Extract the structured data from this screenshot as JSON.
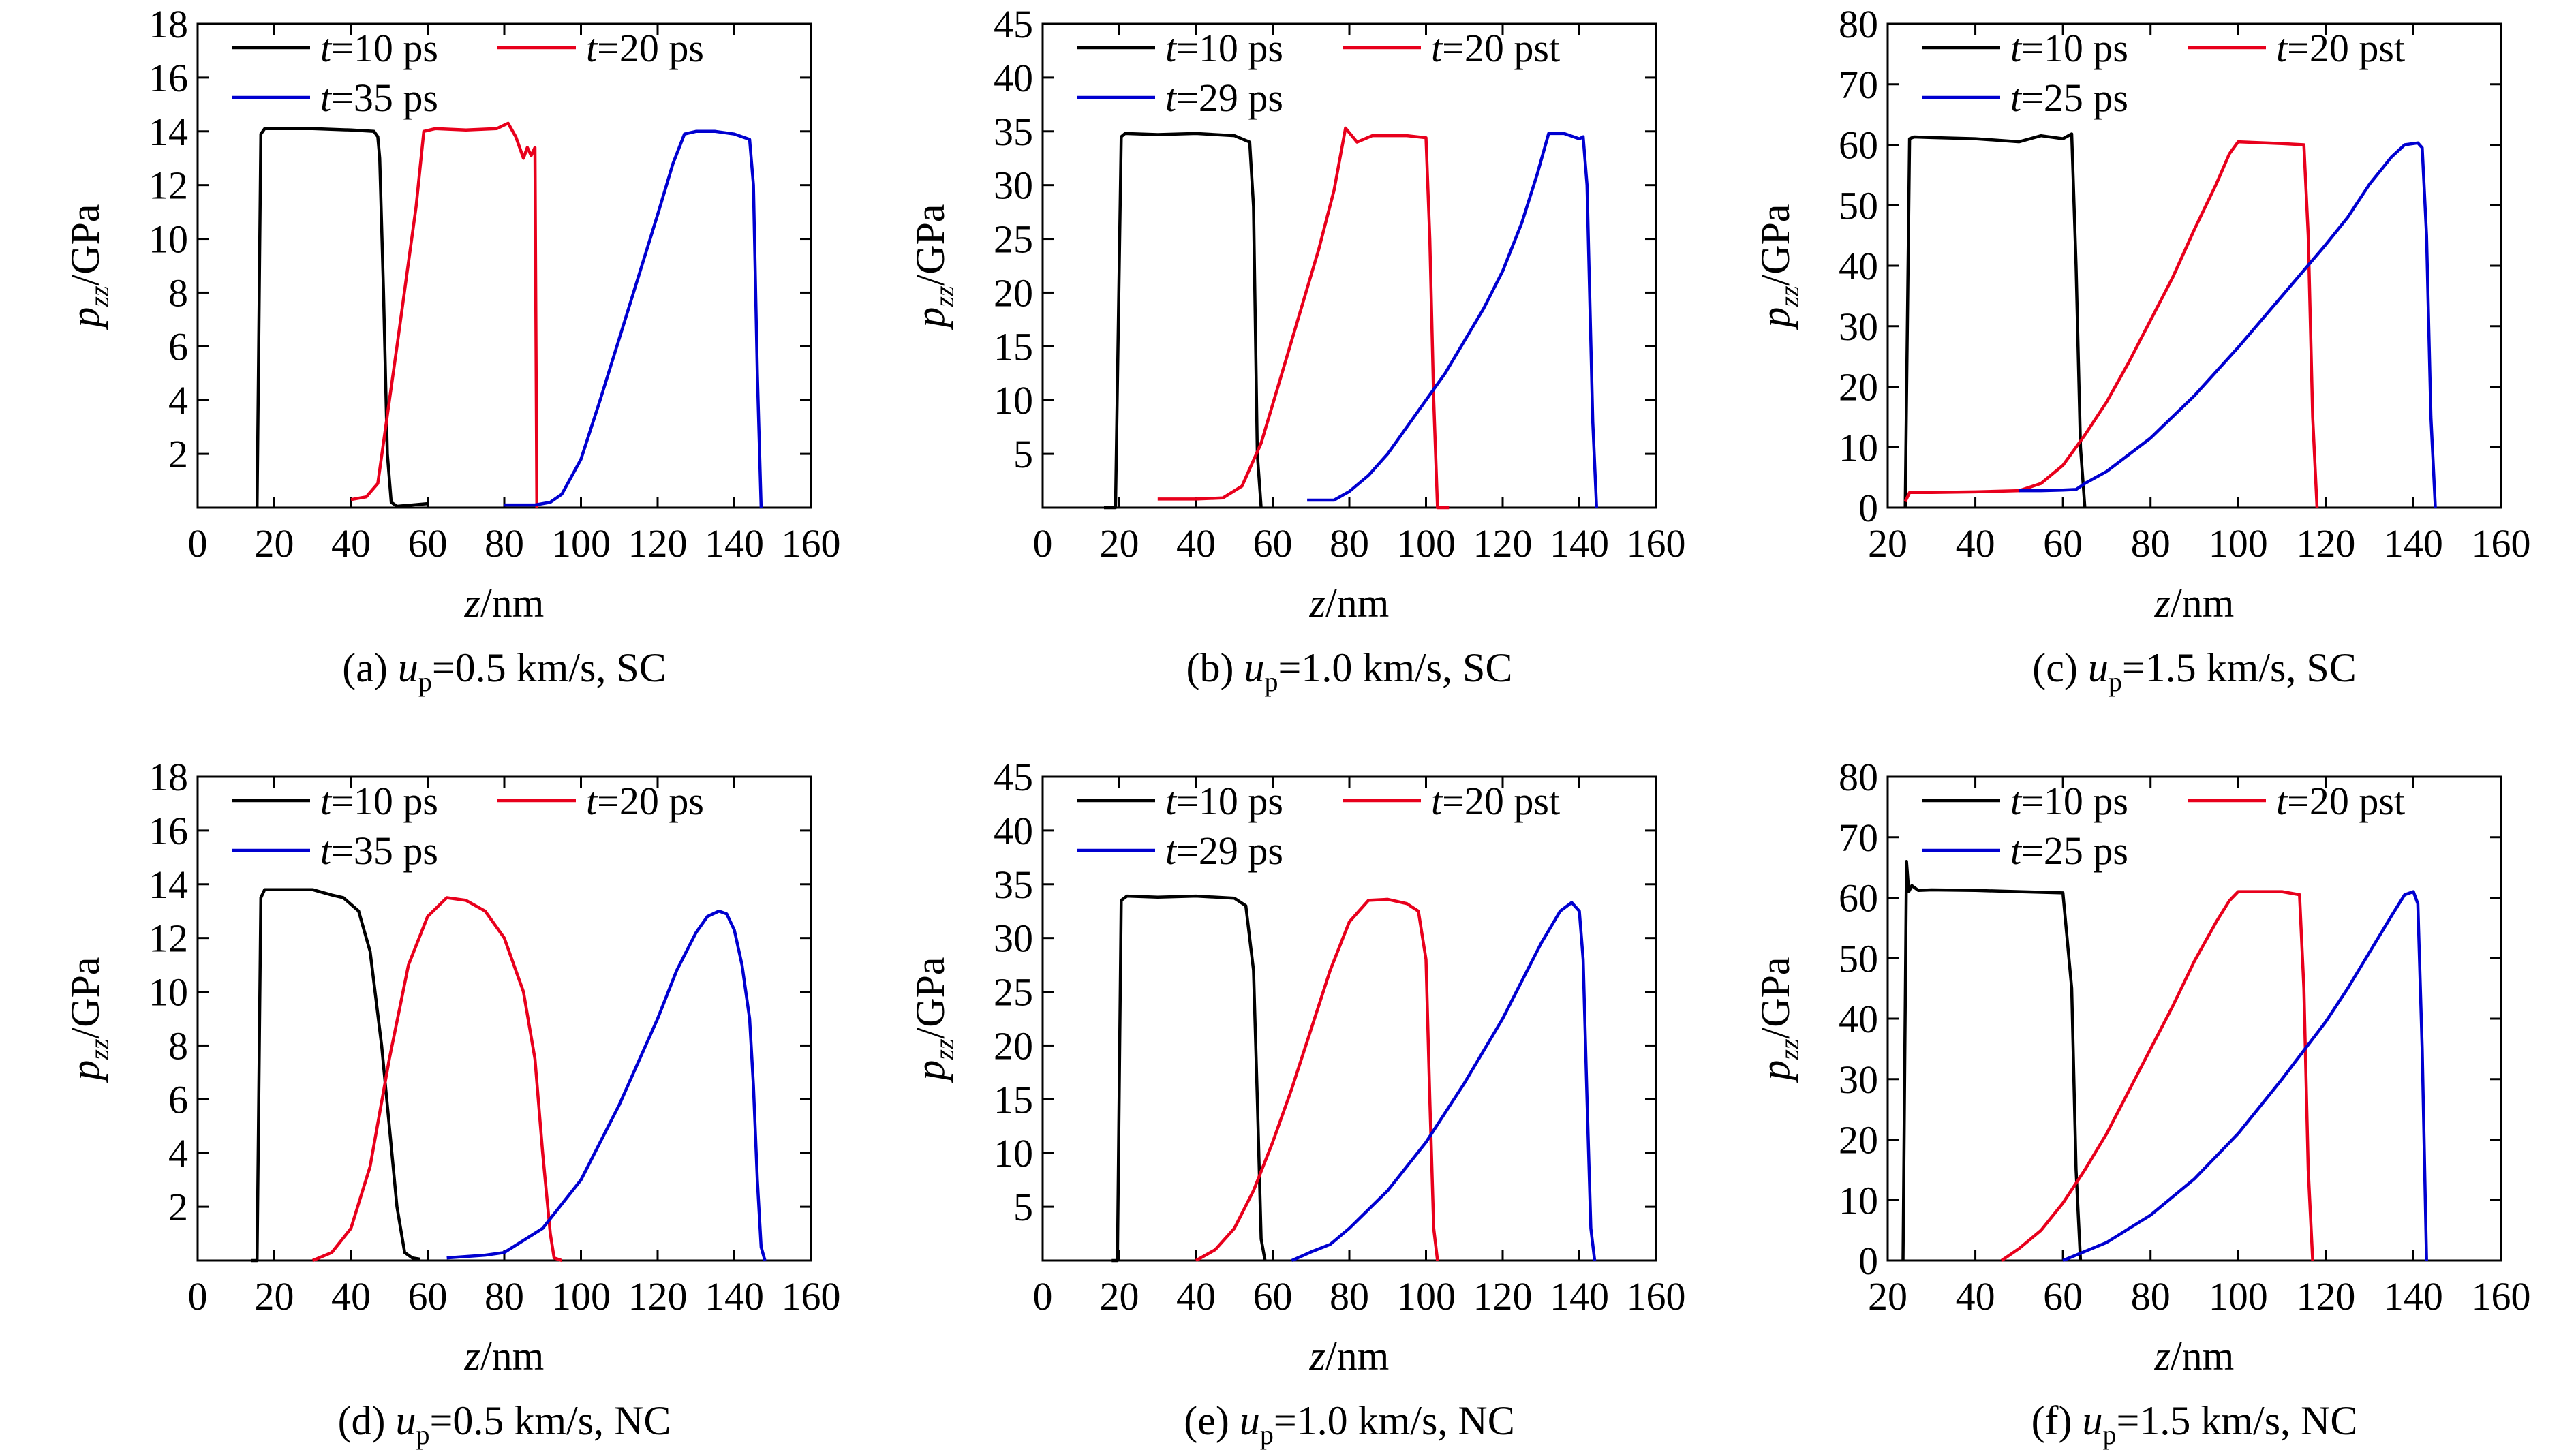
{
  "chart_data": [
    {
      "type": "line",
      "caption": {
        "prefix": "(a) ",
        "var": "u",
        "sub": "p",
        "rest": "=0.5 km/s, SC"
      },
      "xlabel": {
        "var": "z",
        "rest": "/nm"
      },
      "ylabel": {
        "var": "p",
        "sub": "zz",
        "rest": "/GPa"
      },
      "xlim": [
        0,
        160
      ],
      "ylim": [
        0,
        18
      ],
      "xticks": [
        "0",
        "20",
        "40",
        "60",
        "80",
        "100",
        "120",
        "140",
        "160"
      ],
      "yticks": [
        "2",
        "4",
        "6",
        "8",
        "10",
        "12",
        "14",
        "16",
        "18"
      ],
      "legend": {
        "placement": "top-left"
      },
      "series": [
        {
          "var": "t",
          "name": "=10 ps",
          "color": "#000000",
          "x": [
            15.5,
            16.5,
            17.5,
            30,
            40,
            46,
            47,
            47.5,
            48.5,
            49.5,
            50.5,
            52,
            56,
            60
          ],
          "y": [
            0,
            13.9,
            14.1,
            14.1,
            14.05,
            14.0,
            13.8,
            13.0,
            8.0,
            2.0,
            0.2,
            0.05,
            0.1,
            0.15
          ]
        },
        {
          "var": "t",
          "name": "=20 ps",
          "color": "#e8001c",
          "x": [
            40,
            44,
            47,
            52,
            57,
            59,
            62,
            70,
            78,
            81,
            83,
            85,
            86,
            87,
            88,
            88.5
          ],
          "y": [
            0.3,
            0.4,
            0.9,
            6.0,
            11.2,
            14.0,
            14.1,
            14.05,
            14.1,
            14.3,
            13.8,
            13.0,
            13.4,
            13.1,
            13.4,
            0
          ]
        },
        {
          "var": "t",
          "name": "=35 ps",
          "color": "#0000d0",
          "x": [
            80,
            88,
            92,
            95,
            100,
            105,
            110,
            115,
            120,
            124,
            127,
            130,
            135,
            140,
            144,
            145,
            146,
            147
          ],
          "y": [
            0.1,
            0.1,
            0.2,
            0.5,
            1.8,
            4.0,
            6.3,
            8.6,
            10.9,
            12.8,
            13.9,
            14.0,
            14.0,
            13.9,
            13.7,
            12.0,
            5.0,
            0
          ]
        }
      ]
    },
    {
      "type": "line",
      "caption": {
        "prefix": "(b) ",
        "var": "u",
        "sub": "p",
        "rest": "=1.0 km/s, SC"
      },
      "xlabel": {
        "var": "z",
        "rest": "/nm"
      },
      "ylabel": {
        "var": "p",
        "sub": "zz",
        "rest": "/GPa"
      },
      "xlim": [
        0,
        160
      ],
      "ylim": [
        0,
        45
      ],
      "xticks": [
        "0",
        "20",
        "40",
        "60",
        "80",
        "100",
        "120",
        "140",
        "160"
      ],
      "yticks": [
        "5",
        "10",
        "15",
        "20",
        "25",
        "30",
        "35",
        "40",
        "45"
      ],
      "legend": {
        "placement": "top-left"
      },
      "series": [
        {
          "var": "t",
          "name": "=10 ps",
          "color": "#000000",
          "x": [
            16,
            19,
            20.5,
            21.5,
            30,
            40,
            50,
            54,
            55,
            56,
            57
          ],
          "y": [
            0,
            0,
            34.5,
            34.8,
            34.7,
            34.8,
            34.6,
            34.0,
            28,
            5,
            0
          ]
        },
        {
          "var": "t",
          "name": "=20 pst",
          "color": "#e8001c",
          "x": [
            30,
            40,
            47,
            52,
            57,
            62,
            67,
            72,
            76,
            79,
            82,
            86,
            95,
            100,
            101,
            102,
            103,
            106
          ],
          "y": [
            0.8,
            0.8,
            0.9,
            2.0,
            6.0,
            12.0,
            18.0,
            24.0,
            29.5,
            35.3,
            34.0,
            34.6,
            34.6,
            34.4,
            25,
            10,
            0,
            0
          ]
        },
        {
          "var": "t",
          "name": "=29 ps",
          "color": "#0000d0",
          "x": [
            69,
            76,
            80,
            85,
            90,
            95,
            100,
            105,
            110,
            115,
            120,
            125,
            129,
            132,
            136,
            140,
            141,
            142,
            143.5,
            144.5
          ],
          "y": [
            0.7,
            0.7,
            1.5,
            3.0,
            5.0,
            7.5,
            10.0,
            12.5,
            15.5,
            18.5,
            22.0,
            26.5,
            31.0,
            34.8,
            34.8,
            34.3,
            34.5,
            30,
            8,
            0
          ]
        }
      ]
    },
    {
      "type": "line",
      "caption": {
        "prefix": "(c) ",
        "var": "u",
        "sub": "p",
        "rest": "=1.5 km/s, SC"
      },
      "xlabel": {
        "var": "z",
        "rest": "/nm"
      },
      "ylabel": {
        "var": "p",
        "sub": "zz",
        "rest": "/GPa"
      },
      "xlim": [
        20,
        160
      ],
      "ylim": [
        0,
        80
      ],
      "xticks": [
        "20",
        "40",
        "60",
        "80",
        "100",
        "120",
        "140",
        "160"
      ],
      "yticks": [
        "0",
        "10",
        "20",
        "30",
        "40",
        "50",
        "60",
        "70",
        "80"
      ],
      "legend": {
        "placement": "top-left"
      },
      "series": [
        {
          "var": "t",
          "name": "=10 ps",
          "color": "#000000",
          "x": [
            24,
            25,
            26,
            30,
            40,
            50,
            55,
            60,
            62,
            63,
            64,
            65
          ],
          "y": [
            0,
            61.0,
            61.3,
            61.2,
            61.0,
            60.5,
            61.5,
            61.0,
            61.8,
            40,
            10,
            0
          ]
        },
        {
          "var": "t",
          "name": "=20 pst",
          "color": "#e8001c",
          "x": [
            24,
            25,
            30,
            40,
            50,
            55,
            60,
            65,
            70,
            75,
            80,
            85,
            90,
            95,
            98,
            100,
            110,
            115,
            116,
            117,
            118
          ],
          "y": [
            1.0,
            2.5,
            2.5,
            2.6,
            2.8,
            4.0,
            7.0,
            12.0,
            17.5,
            24.0,
            31.0,
            38.0,
            46.0,
            53.5,
            58.5,
            60.5,
            60.2,
            60.0,
            45,
            15,
            0
          ]
        },
        {
          "var": "t",
          "name": "=25 ps",
          "color": "#0000d0",
          "x": [
            50,
            55,
            60,
            63,
            65,
            70,
            80,
            90,
            100,
            110,
            120,
            125,
            130,
            135,
            138,
            141,
            142,
            143,
            144,
            145
          ],
          "y": [
            2.8,
            2.8,
            2.9,
            3.0,
            4.0,
            6.0,
            11.5,
            18.5,
            26.5,
            35.0,
            43.5,
            48.0,
            53.5,
            58.0,
            60.0,
            60.3,
            59.5,
            45,
            15,
            0
          ]
        }
      ]
    },
    {
      "type": "line",
      "caption": {
        "prefix": "(d) ",
        "var": "u",
        "sub": "p",
        "rest": "=0.5 km/s, NC"
      },
      "xlabel": {
        "var": "z",
        "rest": "/nm"
      },
      "ylabel": {
        "var": "p",
        "sub": "zz",
        "rest": "/GPa"
      },
      "xlim": [
        0,
        160
      ],
      "ylim": [
        0,
        18
      ],
      "xticks": [
        "0",
        "20",
        "40",
        "60",
        "80",
        "100",
        "120",
        "140",
        "160"
      ],
      "yticks": [
        "2",
        "4",
        "6",
        "8",
        "10",
        "12",
        "14",
        "16",
        "18"
      ],
      "legend": {
        "placement": "top-left"
      },
      "series": [
        {
          "var": "t",
          "name": "=10 ps",
          "color": "#000000",
          "x": [
            14,
            15.5,
            16.5,
            17.5,
            25,
            30,
            35,
            38,
            42,
            45,
            48,
            50,
            52,
            54,
            56,
            58
          ],
          "y": [
            0,
            0,
            13.5,
            13.8,
            13.8,
            13.8,
            13.6,
            13.5,
            13.0,
            11.5,
            8.0,
            5.0,
            2.0,
            0.3,
            0.1,
            0.05
          ]
        },
        {
          "var": "t",
          "name": "=20 ps",
          "color": "#e8001c",
          "x": [
            30,
            35,
            40,
            45,
            50,
            55,
            60,
            65,
            70,
            75,
            80,
            85,
            88,
            90,
            92,
            93,
            95
          ],
          "y": [
            0,
            0.3,
            1.2,
            3.5,
            7.5,
            11.0,
            12.8,
            13.5,
            13.4,
            13.0,
            12.0,
            10.0,
            7.5,
            4.0,
            1.0,
            0.1,
            0
          ]
        },
        {
          "var": "t",
          "name": "=35 ps",
          "color": "#0000d0",
          "x": [
            65,
            75,
            80,
            90,
            100,
            110,
            120,
            125,
            130,
            133,
            136,
            138,
            140,
            142,
            144,
            145,
            146,
            147,
            148
          ],
          "y": [
            0.1,
            0.2,
            0.3,
            1.2,
            3.0,
            5.8,
            9.0,
            10.8,
            12.2,
            12.8,
            13.0,
            12.9,
            12.3,
            11.0,
            9.0,
            6.5,
            3.0,
            0.5,
            0
          ]
        }
      ]
    },
    {
      "type": "line",
      "caption": {
        "prefix": "(e) ",
        "var": "u",
        "sub": "p",
        "rest": "=1.0 km/s, NC"
      },
      "xlabel": {
        "var": "z",
        "rest": "/nm"
      },
      "ylabel": {
        "var": "p",
        "sub": "zz",
        "rest": "/GPa"
      },
      "xlim": [
        0,
        160
      ],
      "ylim": [
        0,
        45
      ],
      "xticks": [
        "0",
        "20",
        "40",
        "60",
        "80",
        "100",
        "120",
        "140",
        "160"
      ],
      "yticks": [
        "5",
        "10",
        "15",
        "20",
        "25",
        "30",
        "35",
        "40",
        "45"
      ],
      "legend": {
        "placement": "top-left"
      },
      "series": [
        {
          "var": "t",
          "name": "=10 ps",
          "color": "#000000",
          "x": [
            18,
            19.5,
            20.5,
            22,
            30,
            40,
            50,
            53,
            55,
            56,
            57,
            58
          ],
          "y": [
            0,
            0,
            33.5,
            33.9,
            33.8,
            33.9,
            33.7,
            33.0,
            27,
            15,
            2,
            0
          ]
        },
        {
          "var": "t",
          "name": "=20 pst",
          "color": "#e8001c",
          "x": [
            40,
            45,
            50,
            55,
            60,
            65,
            70,
            75,
            80,
            85,
            90,
            95,
            98,
            100,
            101,
            102,
            103
          ],
          "y": [
            0,
            1.0,
            3.0,
            6.5,
            11.0,
            16.0,
            21.5,
            27.0,
            31.5,
            33.5,
            33.6,
            33.2,
            32.5,
            28,
            15,
            3,
            0
          ]
        },
        {
          "var": "t",
          "name": "=29 ps",
          "color": "#0000d0",
          "x": [
            65,
            70,
            75,
            80,
            90,
            100,
            110,
            120,
            125,
            130,
            135,
            138,
            140,
            141,
            142,
            143,
            144
          ],
          "y": [
            0,
            0.8,
            1.5,
            3.0,
            6.5,
            11.0,
            16.5,
            22.5,
            26.0,
            29.5,
            32.5,
            33.3,
            32.5,
            28,
            15,
            3,
            0
          ]
        }
      ]
    },
    {
      "type": "line",
      "caption": {
        "prefix": "(f) ",
        "var": "u",
        "sub": "p",
        "rest": "=1.5 km/s, NC"
      },
      "xlabel": {
        "var": "z",
        "rest": "/nm"
      },
      "ylabel": {
        "var": "p",
        "sub": "zz",
        "rest": "/GPa"
      },
      "xlim": [
        20,
        160
      ],
      "ylim": [
        0,
        80
      ],
      "xticks": [
        "20",
        "40",
        "60",
        "80",
        "100",
        "120",
        "140",
        "160"
      ],
      "yticks": [
        "0",
        "10",
        "20",
        "30",
        "40",
        "50",
        "60",
        "70",
        "80"
      ],
      "legend": {
        "placement": "top-left"
      },
      "series": [
        {
          "var": "t",
          "name": "=10 ps",
          "color": "#000000",
          "x": [
            23.5,
            24.3,
            24.8,
            25.5,
            27,
            30,
            40,
            50,
            60,
            62,
            63,
            64
          ],
          "y": [
            0,
            66.0,
            61.0,
            62.0,
            61.2,
            61.3,
            61.2,
            61.0,
            60.8,
            45,
            15,
            0
          ]
        },
        {
          "var": "t",
          "name": "=20 pst",
          "color": "#e8001c",
          "x": [
            46,
            50,
            55,
            60,
            65,
            70,
            75,
            80,
            85,
            90,
            95,
            98,
            100,
            110,
            114,
            115,
            116,
            117
          ],
          "y": [
            0,
            2.0,
            5.0,
            9.5,
            15.0,
            21.0,
            28.0,
            35.0,
            42.0,
            49.5,
            56.0,
            59.5,
            61.0,
            61.0,
            60.5,
            45,
            15,
            0
          ]
        },
        {
          "var": "t",
          "name": "=25 ps",
          "color": "#0000d0",
          "x": [
            60,
            65,
            70,
            80,
            90,
            100,
            110,
            120,
            125,
            130,
            135,
            138,
            140,
            141,
            142,
            143
          ],
          "y": [
            0,
            1.5,
            3.0,
            7.5,
            13.5,
            21.0,
            30.0,
            39.5,
            45.0,
            51.0,
            57.0,
            60.5,
            61.0,
            59.0,
            35,
            0
          ]
        }
      ]
    }
  ]
}
